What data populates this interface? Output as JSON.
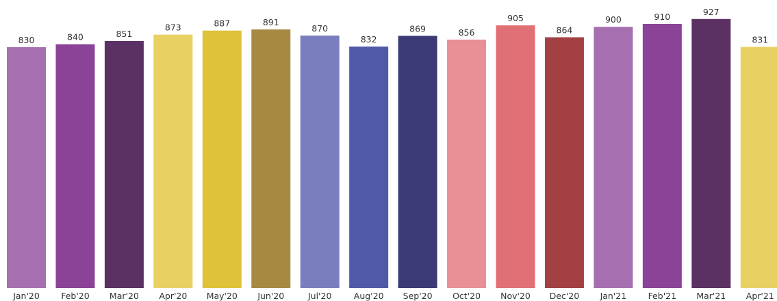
{
  "chart_data": {
    "type": "bar",
    "title": "",
    "xlabel": "",
    "ylabel": "",
    "ylim": [
      0,
      950
    ],
    "grid": false,
    "legend": "none",
    "categories": [
      "Jan'20",
      "Feb'20",
      "Mar'20",
      "Apr'20",
      "May'20",
      "Jun'20",
      "Jul'20",
      "Aug'20",
      "Sep'20",
      "Oct'20",
      "Nov'20",
      "Dec'20",
      "Jan'21",
      "Feb'21",
      "Mar'21",
      "Apr'21"
    ],
    "values": [
      830,
      840,
      851,
      873,
      887,
      891,
      870,
      832,
      869,
      856,
      905,
      864,
      900,
      910,
      927,
      831
    ],
    "colors": [
      "#a66fb0",
      "#8b4398",
      "#5b3163",
      "#e8d163",
      "#dfc13a",
      "#a68a41",
      "#7a7ebe",
      "#5059a8",
      "#3b3a77",
      "#e89095",
      "#e17076",
      "#a24044",
      "#a66fb0",
      "#8b4398",
      "#5b3163",
      "#e8d163"
    ]
  }
}
